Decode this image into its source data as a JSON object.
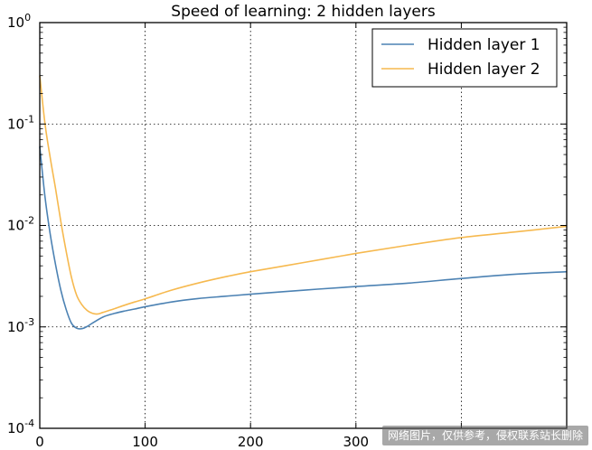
{
  "chart_data": {
    "type": "line",
    "title": "Speed of learning: 2 hidden layers",
    "xlabel": "",
    "ylabel": "",
    "yscale": "log",
    "xlim": [
      0,
      500
    ],
    "ylim": [
      0.0001,
      1
    ],
    "x_ticks": [
      0,
      100,
      200,
      300,
      400,
      500
    ],
    "x_tick_labels": [
      "0",
      "100",
      "200",
      "300",
      "",
      ""
    ],
    "y_ticks": [
      {
        "base": "10",
        "exp": "-4",
        "value": 0.0001
      },
      {
        "base": "10",
        "exp": "-3",
        "value": 0.001
      },
      {
        "base": "10",
        "exp": "-2",
        "value": 0.01
      },
      {
        "base": "10",
        "exp": "-1",
        "value": 0.1
      },
      {
        "base": "10",
        "exp": "0",
        "value": 1
      }
    ],
    "grid": true,
    "legend_position": "top-right",
    "series": [
      {
        "name": "Hidden layer 1",
        "color": "#4c82b3",
        "x": [
          0,
          5,
          10,
          15,
          20,
          25,
          30,
          35,
          40,
          45,
          50,
          60,
          70,
          80,
          90,
          100,
          125,
          150,
          175,
          200,
          250,
          300,
          350,
          400,
          450,
          500
        ],
        "y": [
          0.06,
          0.019,
          0.0081,
          0.0041,
          0.0023,
          0.00149,
          0.00109,
          0.00097,
          0.00096,
          0.00101,
          0.00109,
          0.00125,
          0.00135,
          0.00143,
          0.0015,
          0.00158,
          0.00176,
          0.0019,
          0.002,
          0.0021,
          0.0023,
          0.0025,
          0.0027,
          0.003,
          0.0033,
          0.0035
        ]
      },
      {
        "name": "Hidden layer 2",
        "color": "#f6b94f",
        "x": [
          0,
          5,
          10,
          15,
          20,
          25,
          30,
          35,
          40,
          45,
          50,
          55,
          60,
          70,
          80,
          90,
          100,
          125,
          150,
          175,
          200,
          250,
          300,
          350,
          400,
          450,
          500
        ],
        "y": [
          0.3,
          0.1,
          0.046,
          0.023,
          0.0109,
          0.0056,
          0.0031,
          0.00205,
          0.00165,
          0.00145,
          0.00136,
          0.00134,
          0.00139,
          0.0015,
          0.00163,
          0.00176,
          0.00189,
          0.0023,
          0.0027,
          0.0031,
          0.0035,
          0.0043,
          0.0053,
          0.0064,
          0.0076,
          0.0086,
          0.0098
        ]
      }
    ]
  },
  "watermark": "网络图片，仅供参考，侵权联系站长删除"
}
